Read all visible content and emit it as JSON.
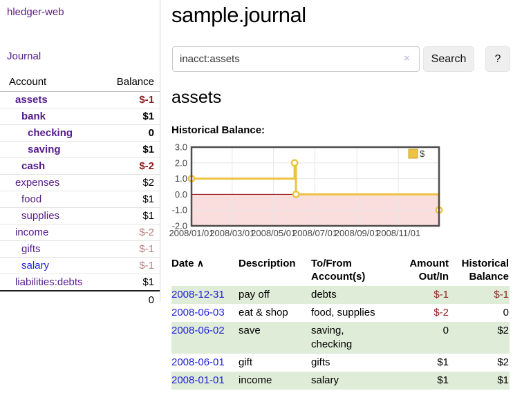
{
  "app": {
    "brand": "hledger-web",
    "nav_journal": "Journal"
  },
  "sidebar": {
    "accounts_header": {
      "account": "Account",
      "balance": "Balance"
    },
    "accounts": [
      {
        "name": "assets",
        "balance": "$-1",
        "indent": 1,
        "bold": true,
        "balance_negative": true,
        "unvisited": false
      },
      {
        "name": "bank",
        "balance": "$1",
        "indent": 2,
        "bold": true,
        "balance_negative": false,
        "unvisited": false
      },
      {
        "name": "checking",
        "balance": "0",
        "indent": 3,
        "bold": true,
        "balance_negative": false,
        "unvisited": false
      },
      {
        "name": "saving",
        "balance": "$1",
        "indent": 3,
        "bold": true,
        "balance_negative": false,
        "unvisited": false
      },
      {
        "name": "cash",
        "balance": "$-2",
        "indent": 2,
        "bold": true,
        "balance_negative": true,
        "unvisited": false
      },
      {
        "name": "expenses",
        "balance": "$2",
        "indent": 1,
        "bold": false,
        "balance_negative": false,
        "unvisited": false
      },
      {
        "name": "food",
        "balance": "$1",
        "indent": 2,
        "bold": false,
        "balance_negative": false,
        "unvisited": false
      },
      {
        "name": "supplies",
        "balance": "$1",
        "indent": 2,
        "bold": false,
        "balance_negative": false,
        "unvisited": false
      },
      {
        "name": "income",
        "balance": "$-2",
        "indent": 1,
        "bold": false,
        "balance_negative": true,
        "unvisited": false
      },
      {
        "name": "gifts",
        "balance": "$-1",
        "indent": 2,
        "bold": false,
        "balance_negative": true,
        "unvisited": false
      },
      {
        "name": "salary",
        "balance": "$-1",
        "indent": 2,
        "bold": false,
        "balance_negative": true,
        "unvisited": true
      },
      {
        "name": "liabilities:debts",
        "balance": "$1",
        "indent": 1,
        "bold": false,
        "balance_negative": false,
        "unvisited": false
      }
    ],
    "total": "0"
  },
  "main": {
    "title": "sample.journal",
    "search": {
      "value": "inacct:assets",
      "clear_icon": "×",
      "button_label": "Search",
      "help_label": "?"
    },
    "account_heading": "assets",
    "chart_label": "Historical Balance:"
  },
  "chart_data": {
    "type": "line",
    "step": true,
    "title": "Historical Balance:",
    "x_range": [
      "2008-01-01",
      "2008-12-31"
    ],
    "ylim": [
      -2,
      3
    ],
    "series": [
      {
        "name": "$",
        "color": "#edc240",
        "points": [
          {
            "date": "2008-01-01",
            "value": 1
          },
          {
            "date": "2008-06-01",
            "value": 2
          },
          {
            "date": "2008-06-03",
            "value": 0
          },
          {
            "date": "2008-12-31",
            "value": -1
          }
        ]
      }
    ],
    "x_ticks": [
      {
        "date": "2008-01-01",
        "label": "2008/01/01"
      },
      {
        "date": "2008-03-01",
        "label": "2008/03/01"
      },
      {
        "date": "2008-05-01",
        "label": "2008/05/01"
      },
      {
        "date": "2008-07-01",
        "label": "2008/07/01"
      },
      {
        "date": "2008-09-01",
        "label": "2008/09/01"
      },
      {
        "date": "2008-11-01",
        "label": "2008/11/01"
      }
    ],
    "y_ticks": [
      {
        "value": 3,
        "label": "3.0"
      },
      {
        "value": 2,
        "label": "2.0"
      },
      {
        "value": 1,
        "label": "1.0"
      },
      {
        "value": 0,
        "label": "0.0"
      },
      {
        "value": -1,
        "label": "-1.0"
      },
      {
        "value": -2,
        "label": "-2.0"
      }
    ],
    "legend": {
      "label": "$",
      "position": "top-right"
    },
    "grid": true,
    "zero_line_color": "#8b0000",
    "negative_region_color": "#fadede",
    "grid_color": "#e6e6e6",
    "border_color": "#4d4d4d"
  },
  "register": {
    "headers": {
      "date": "Date",
      "description": "Description",
      "accounts": "To/From Account(s)",
      "amount": "Amount Out/In",
      "balance": "Historical Balance"
    },
    "sort_icon": "∧",
    "rows": [
      {
        "date": "2008-12-31",
        "description": "pay off",
        "accounts": "debts",
        "amount": "$-1",
        "amount_negative": true,
        "balance": "$-1",
        "balance_negative": true
      },
      {
        "date": "2008-06-03",
        "description": "eat & shop",
        "accounts": "food, supplies",
        "amount": "$-2",
        "amount_negative": true,
        "balance": "0",
        "balance_negative": false
      },
      {
        "date": "2008-06-02",
        "description": "save",
        "accounts": "saving, checking",
        "amount": "0",
        "amount_negative": false,
        "balance": "$2",
        "balance_negative": false
      },
      {
        "date": "2008-06-01",
        "description": "gift",
        "accounts": "gifts",
        "amount": "$1",
        "amount_negative": false,
        "balance": "$2",
        "balance_negative": false
      },
      {
        "date": "2008-01-01",
        "description": "income",
        "accounts": "salary",
        "amount": "$1",
        "amount_negative": false,
        "balance": "$1",
        "balance_negative": false
      }
    ]
  },
  "colors": {
    "link_visited": "#551a8b",
    "link_unvisited": "#2121de",
    "table_link": "#2222dd",
    "negative_strong": "#8f1a1a",
    "negative_muted": "#b97979",
    "stripe_green": "#dfecd8",
    "series_gold": "#edc240"
  }
}
